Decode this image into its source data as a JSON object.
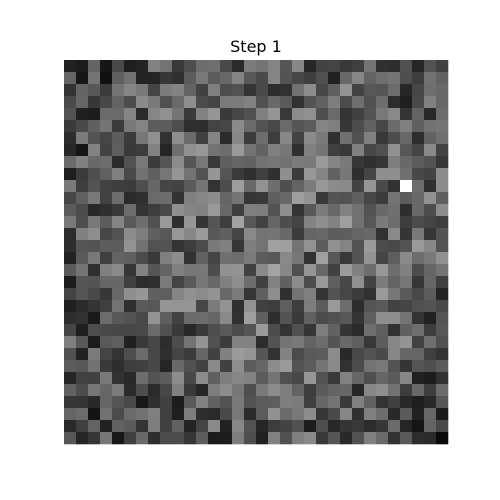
{
  "chart_data": {
    "type": "heatmap",
    "title": "Step 1",
    "xlabel": "",
    "ylabel": "",
    "rows": 32,
    "cols": 32,
    "colormap": "gray",
    "axes_visible": false,
    "grid": false,
    "value_range": [
      0,
      255
    ],
    "seed": 1,
    "values_note": ""
  }
}
